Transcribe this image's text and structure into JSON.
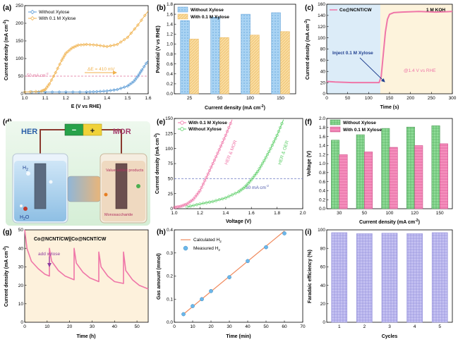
{
  "panels": {
    "a": {
      "letter": "(a)",
      "xlabel": "E (V vs RHE)",
      "ylabel": "Current density (mA cm",
      "ylabel_sup": "-2",
      "ylabel_end": ")",
      "xticks": [
        "1.0",
        "1.1",
        "1.2",
        "1.3",
        "1.4",
        "1.5",
        "1.6"
      ],
      "yticks": [
        "0",
        "50",
        "100",
        "150",
        "200",
        "250"
      ],
      "xlim": [
        1.0,
        1.6
      ],
      "ylim": [
        0,
        250
      ],
      "ref_label": "50 mA cm",
      "ref_label_sup": "-2",
      "ref_value": 50,
      "delta_label": "ΔE = 410 mV",
      "legend": [
        "Without Xylose",
        "With 0.1 M Xylose"
      ],
      "colors": {
        "without": "#5b9bd5",
        "with": "#f0b24e",
        "ref": "#e0709a"
      }
    },
    "b": {
      "letter": "(b)",
      "xlabel": "Current density (mA cm",
      "xlabel_sup": "-2",
      "xlabel_end": ")",
      "ylabel": "Potential (V vs RHE)",
      "yticks": [
        "0.0",
        "0.2",
        "0.4",
        "0.6",
        "0.8",
        "1.0",
        "1.2",
        "1.4",
        "1.6",
        "1.8"
      ],
      "ylim": [
        0,
        1.8
      ],
      "legend": [
        "Without Xylose",
        "With 0.1 M Xylose"
      ],
      "colors": {
        "without": "#9ccbf0",
        "with": "#f7d48e"
      }
    },
    "c": {
      "letter": "(c)",
      "xlabel": "Time (s)",
      "ylabel": "Current density (mA cm",
      "ylabel_sup": "-2",
      "ylabel_end": ")",
      "xticks": [
        "0",
        "50",
        "100",
        "150",
        "200",
        "250",
        "300"
      ],
      "yticks": [
        "0",
        "20",
        "40",
        "60",
        "80",
        "100",
        "120",
        "140",
        "160"
      ],
      "xlim": [
        0,
        300
      ],
      "ylim": [
        0,
        160
      ],
      "legend": [
        "Co@NCNT/CW"
      ],
      "electrolyte": "1 M KOH",
      "inject_label": "Inject 0.1 M Xylose",
      "potential_label": "@1.4 V vs RHE",
      "colors": {
        "line": "#ef76a8",
        "bg_left": "#dcecf8",
        "bg_right": "#fdf3dc"
      }
    },
    "d": {
      "letter": "(d)",
      "her": "HER",
      "mor": "MOR",
      "h2": "H",
      "h2_sub": "2",
      "h2o": "H",
      "h2o_sub": "2",
      "h2o_end": "O",
      "products": "Value-added products",
      "monosaccharide": "Monosaccharide",
      "minus": "−",
      "plus": "+"
    },
    "e": {
      "letter": "(e)",
      "xlabel": "Voltage (V)",
      "ylabel": "Current density (mA cm",
      "ylabel_sup": "-2",
      "ylabel_end": ")",
      "xticks": [
        "1.0",
        "1.2",
        "1.4",
        "1.6",
        "1.8",
        "2.0"
      ],
      "yticks": [
        "0",
        "25",
        "50",
        "75",
        "100",
        "125",
        "150"
      ],
      "xlim": [
        1.0,
        2.0
      ],
      "ylim": [
        0,
        150
      ],
      "legend": [
        "With 0.1 M Xylose",
        "Without Xylose"
      ],
      "label_her_mor": "HER & MOR",
      "label_her_oer": "HER & OER",
      "ref_label": "50 mA cm",
      "ref_label_sup": "-2",
      "colors": {
        "with": "#ef76a8",
        "without": "#5fcf6a",
        "ref": "#7b86c9"
      }
    },
    "f": {
      "letter": "(f)",
      "xlabel": "Current density (mA cm",
      "xlabel_sup": "-2",
      "xlabel_end": ")",
      "ylabel": "Voltage (V)",
      "yticks": [
        "0.0",
        "0.2",
        "0.4",
        "0.6",
        "0.8",
        "1.0",
        "1.2",
        "1.4",
        "1.6",
        "1.8",
        "2.0"
      ],
      "ylim": [
        0,
        2.0
      ],
      "legend": [
        "Without Xylose",
        "With 0.1 M Xylose"
      ],
      "colors": {
        "without": "#7fd38a",
        "with": "#f27bb0"
      }
    },
    "g": {
      "letter": "(g)",
      "xlabel": "Time (h)",
      "ylabel": "Current density (mA cm",
      "ylabel_sup": "-2",
      "ylabel_end": ")",
      "xticks": [
        "0",
        "10",
        "20",
        "30",
        "40",
        "50"
      ],
      "yticks": [
        "0",
        "10",
        "20",
        "30",
        "40",
        "50"
      ],
      "xlim": [
        0,
        55
      ],
      "ylim": [
        0,
        50
      ],
      "title": "Co@NCNT/CW||Co@NCNT/CW",
      "annotation": "add xylose",
      "colors": {
        "line": "#ef76a8",
        "bg": "#fdf1dc",
        "arrow": "#8e3c9e"
      }
    },
    "h": {
      "letter": "(h)",
      "xlabel": "Time (min)",
      "ylabel": "Gas amount (mmol)",
      "xticks": [
        "0",
        "10",
        "20",
        "30",
        "40",
        "50",
        "60",
        "70"
      ],
      "yticks": [
        "0.0",
        "0.1",
        "0.2",
        "0.3",
        "0.4"
      ],
      "xlim": [
        0,
        70
      ],
      "ylim": [
        0,
        0.4
      ],
      "legend_calc": "Calculated H",
      "legend_meas": "Measured H",
      "sub2": "2",
      "colors": {
        "line": "#f08a5d",
        "points": "#6cb7ea"
      }
    },
    "i": {
      "letter": "(i)",
      "xlabel": "Cycles",
      "ylabel": "Faradaic efficiency (%)",
      "yticks": [
        "0",
        "20",
        "40",
        "60",
        "80",
        "100"
      ],
      "ylim": [
        0,
        100
      ],
      "colors": {
        "bar": "#b9b6ec"
      }
    }
  },
  "chart_data": [
    {
      "panel": "a",
      "type": "line",
      "xlim": [
        1.0,
        1.6
      ],
      "ylim": [
        0,
        250
      ],
      "series": [
        {
          "name": "Without Xylose",
          "x": [
            1.0,
            1.1,
            1.2,
            1.3,
            1.35,
            1.4,
            1.45,
            1.5,
            1.53,
            1.55,
            1.57,
            1.6
          ],
          "y": [
            5,
            5,
            5,
            5,
            6,
            8,
            12,
            22,
            35,
            50,
            68,
            95
          ]
        },
        {
          "name": "With 0.1 M Xylose",
          "x": [
            1.0,
            1.08,
            1.1,
            1.12,
            1.15,
            1.18,
            1.2,
            1.23,
            1.26,
            1.3,
            1.35,
            1.4,
            1.45,
            1.5,
            1.55,
            1.6
          ],
          "y": [
            5,
            7,
            12,
            28,
            60,
            95,
            115,
            130,
            138,
            140,
            138,
            134,
            140,
            160,
            195,
            235
          ]
        }
      ],
      "reference_y": 50
    },
    {
      "panel": "b",
      "type": "bar",
      "categories": [
        "25",
        "50",
        "100",
        "150"
      ],
      "ylim": [
        0,
        1.8
      ],
      "series": [
        {
          "name": "Without Xylose",
          "values": [
            1.47,
            1.54,
            1.6,
            1.63
          ]
        },
        {
          "name": "With 0.1 M Xylose",
          "values": [
            1.1,
            1.13,
            1.18,
            1.25
          ]
        }
      ]
    },
    {
      "panel": "c",
      "type": "line",
      "xlim": [
        0,
        300
      ],
      "ylim": [
        0,
        160
      ],
      "series": [
        {
          "name": "Co@NCNT/CW",
          "x": [
            0,
            20,
            60,
            100,
            125,
            130,
            135,
            140,
            145,
            150,
            160,
            180,
            220,
            260,
            300
          ],
          "y": [
            22,
            21,
            20,
            20,
            20,
            30,
            70,
            110,
            133,
            142,
            145,
            146,
            147,
            146,
            147
          ]
        }
      ],
      "inject_time": 128
    },
    {
      "panel": "e",
      "type": "line",
      "xlim": [
        1.0,
        2.0
      ],
      "ylim": [
        0,
        150
      ],
      "series": [
        {
          "name": "With 0.1 M Xylose",
          "x": [
            1.0,
            1.05,
            1.1,
            1.15,
            1.2,
            1.25,
            1.3,
            1.35,
            1.4,
            1.45
          ],
          "y": [
            2,
            4,
            8,
            16,
            30,
            52,
            75,
            98,
            122,
            148
          ]
        },
        {
          "name": "Without Xylose",
          "x": [
            1.1,
            1.2,
            1.3,
            1.4,
            1.5,
            1.55,
            1.6,
            1.65,
            1.7,
            1.75,
            1.8,
            1.85
          ],
          "y": [
            3,
            8,
            12,
            18,
            28,
            36,
            48,
            62,
            80,
            100,
            122,
            148
          ]
        }
      ],
      "reference_y": 50
    },
    {
      "panel": "f",
      "type": "bar",
      "categories": [
        "30",
        "50",
        "100",
        "120",
        "150"
      ],
      "ylim": [
        0,
        2.0
      ],
      "series": [
        {
          "name": "Without Xylose",
          "values": [
            1.52,
            1.64,
            1.78,
            1.81,
            1.84
          ]
        },
        {
          "name": "With 0.1 M Xylose",
          "values": [
            1.2,
            1.26,
            1.36,
            1.4,
            1.44
          ]
        }
      ]
    },
    {
      "panel": "g",
      "type": "line",
      "xlim": [
        0,
        55
      ],
      "ylim": [
        0,
        50
      ],
      "series": [
        {
          "name": "Co@NCNT/CW||Co@NCNT/CW",
          "x": [
            0,
            1,
            3,
            6,
            9,
            11,
            11,
            12,
            15,
            18,
            22,
            22,
            23,
            26,
            29,
            33,
            33,
            34,
            37,
            40,
            44,
            44,
            45,
            48,
            51,
            55
          ],
          "y": [
            50,
            40,
            33,
            29,
            26,
            25,
            40,
            33,
            28,
            25,
            23,
            40,
            32,
            27,
            24,
            22,
            38,
            30,
            25,
            22,
            21,
            38,
            28,
            23,
            20,
            18
          ]
        }
      ],
      "annotation_x": 11
    },
    {
      "panel": "h",
      "type": "scatter",
      "xlim": [
        0,
        70
      ],
      "ylim": [
        0,
        0.4
      ],
      "series": [
        {
          "name": "Calculated H2",
          "x": [
            5,
            60
          ],
          "y": [
            0.035,
            0.395
          ]
        },
        {
          "name": "Measured H2",
          "x": [
            5,
            10,
            15,
            20,
            30,
            40,
            50,
            60
          ],
          "y": [
            0.035,
            0.07,
            0.1,
            0.135,
            0.195,
            0.265,
            0.325,
            0.385
          ]
        }
      ]
    },
    {
      "panel": "i",
      "type": "bar",
      "categories": [
        "1",
        "2",
        "3",
        "4",
        "5"
      ],
      "ylim": [
        0,
        100
      ],
      "values": [
        97,
        96,
        96.5,
        96,
        97
      ]
    }
  ]
}
